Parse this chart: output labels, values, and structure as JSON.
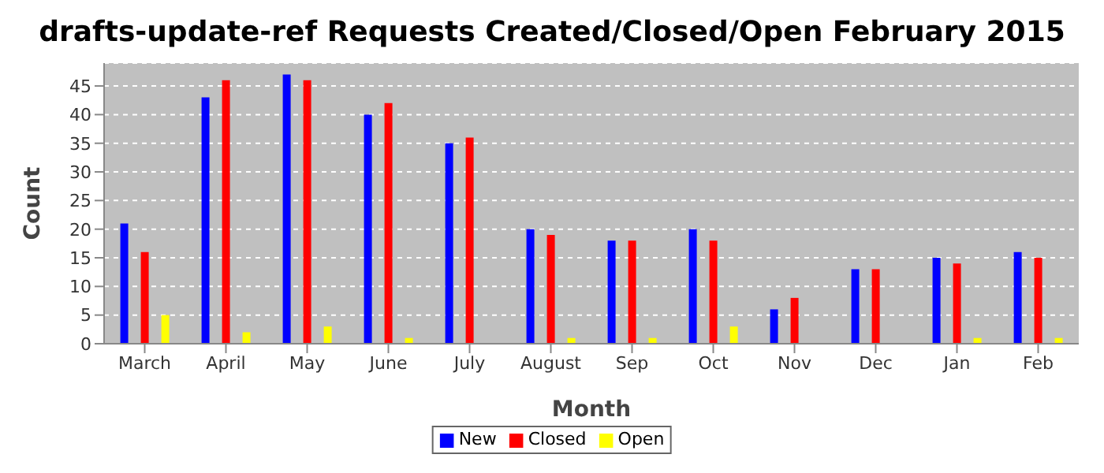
{
  "chart_data": {
    "type": "bar",
    "title": "drafts-update-ref Requests Created/Closed/Open February 2015",
    "xlabel": "Month",
    "ylabel": "Count",
    "categories": [
      "March",
      "April",
      "May",
      "June",
      "July",
      "August",
      "Sep",
      "Oct",
      "Nov",
      "Dec",
      "Jan",
      "Feb"
    ],
    "series": [
      {
        "name": "New",
        "color": "#0000ff",
        "values": [
          21,
          43,
          47,
          40,
          35,
          20,
          18,
          20,
          6,
          13,
          15,
          16
        ]
      },
      {
        "name": "Closed",
        "color": "#ff0000",
        "values": [
          16,
          46,
          46,
          42,
          36,
          19,
          18,
          18,
          8,
          13,
          14,
          15
        ]
      },
      {
        "name": "Open",
        "color": "#ffff00",
        "values": [
          5,
          2,
          3,
          1,
          0,
          1,
          1,
          3,
          0,
          0,
          1,
          1
        ]
      }
    ],
    "ylim": [
      0,
      49
    ],
    "yticks": [
      0,
      5,
      10,
      15,
      20,
      25,
      30,
      35,
      40,
      45
    ],
    "grid": "y",
    "legend": "bottom"
  }
}
